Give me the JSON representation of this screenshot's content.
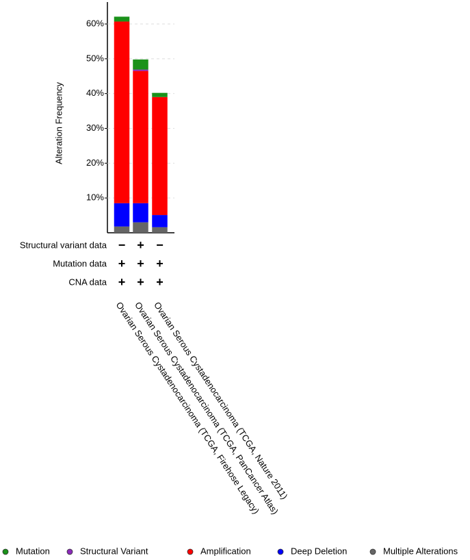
{
  "chart_data": {
    "type": "stacked_bar",
    "y_label": "Alteration Frequency",
    "categories": [
      "Ovarian Serous Cystadenocarcinoma (TCGA, Firehose Legacy)",
      "Ovarian Serous Cystadenocarcinoma (TCGA, PanCancer Atlas)",
      "Ovarian Serous Cystadenocarcinoma (TCGA, Nature 2011)"
    ],
    "series": [
      {
        "name": "Mutation",
        "color": "#1a921a",
        "values": [
          1.4,
          2.9,
          1.2
        ]
      },
      {
        "name": "Structural Variant",
        "color": "#8b2bb9",
        "values": [
          0,
          0.4,
          0
        ]
      },
      {
        "name": "Amplification",
        "color": "#ff0000",
        "values": [
          52.2,
          38.0,
          33.9
        ]
      },
      {
        "name": "Deep Deletion",
        "color": "#0000ff",
        "values": [
          6.7,
          5.5,
          3.5
        ]
      },
      {
        "name": "Multiple Alterations",
        "color": "#666666",
        "values": [
          1.8,
          3.0,
          1.6
        ]
      }
    ],
    "ylim": [
      0,
      66.3
    ],
    "yticks": [
      {
        "value": 10,
        "label": "10%"
      },
      {
        "value": 20,
        "label": "20%"
      },
      {
        "value": 30,
        "label": "30%"
      },
      {
        "value": 40,
        "label": "40%"
      },
      {
        "value": 50,
        "label": "50%"
      },
      {
        "value": 60,
        "label": "60%"
      }
    ],
    "grid": true,
    "data_rows": [
      {
        "label": "Structural variant data",
        "values": [
          "−",
          "+",
          "−"
        ]
      },
      {
        "label": "Mutation data",
        "values": [
          "+",
          "+",
          "+"
        ]
      },
      {
        "label": "CNA data",
        "values": [
          "+",
          "+",
          "+"
        ]
      }
    ]
  }
}
